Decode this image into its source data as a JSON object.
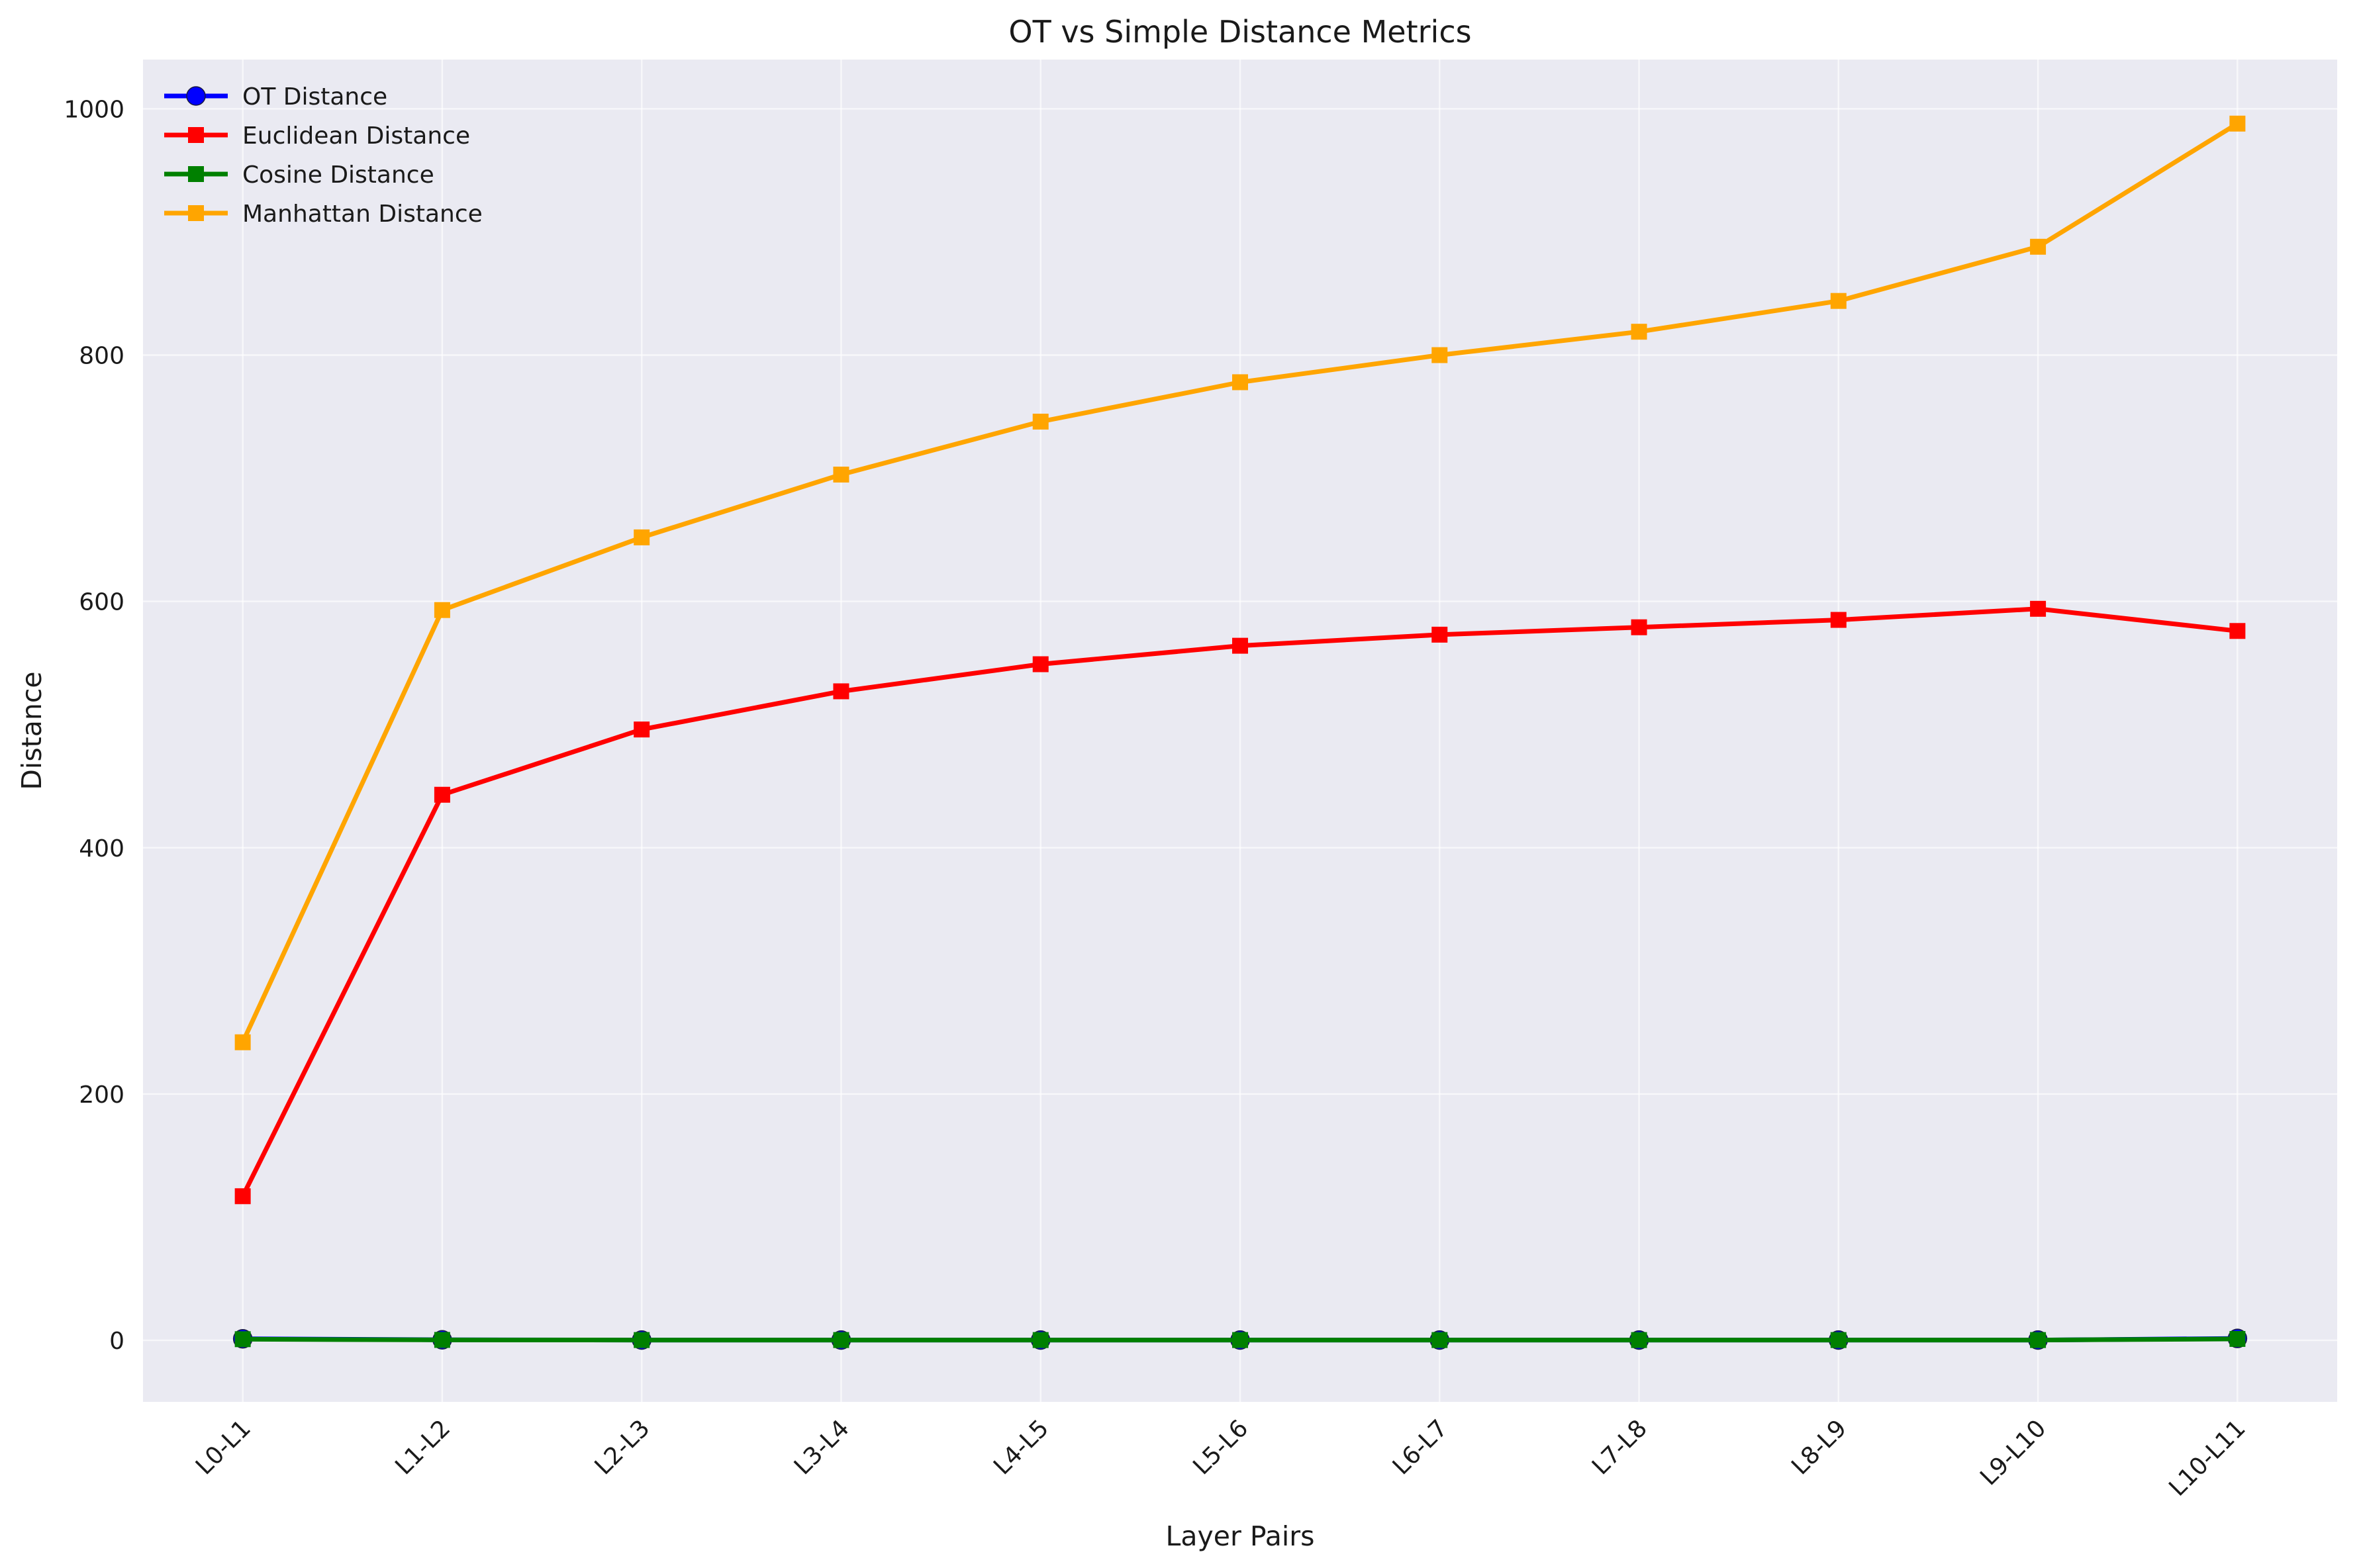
{
  "chart_data": {
    "type": "line",
    "title": "OT vs Simple Distance Metrics",
    "xlabel": "Layer Pairs",
    "ylabel": "Distance",
    "categories": [
      "L0-L1",
      "L1-L2",
      "L2-L3",
      "L3-L4",
      "L4-L5",
      "L5-L6",
      "L6-L7",
      "L7-L8",
      "L8-L9",
      "L9-L10",
      "L10-L11"
    ],
    "ylim": [
      -50,
      1040
    ],
    "yticks": [
      0,
      200,
      400,
      600,
      800,
      1000
    ],
    "grid": true,
    "legend_position": "top-left",
    "background_color": "#eaeaf2",
    "series": [
      {
        "name": "OT Distance",
        "color": "#0000ff",
        "marker": "circle",
        "values": [
          1.2,
          0.4,
          0.2,
          0.2,
          0.2,
          0.2,
          0.2,
          0.2,
          0.2,
          0.2,
          1.5
        ]
      },
      {
        "name": "Euclidean Distance",
        "color": "#ff0000",
        "marker": "square",
        "values": [
          117,
          443,
          496,
          527,
          549,
          564,
          573,
          579,
          585,
          594,
          576
        ]
      },
      {
        "name": "Cosine Distance",
        "color": "#008000",
        "marker": "square",
        "values": [
          0.9,
          0.3,
          0.2,
          0.2,
          0.2,
          0.2,
          0.2,
          0.2,
          0.2,
          0.2,
          1.1
        ]
      },
      {
        "name": "Manhattan Distance",
        "color": "#ffa500",
        "marker": "square",
        "values": [
          242,
          593,
          652,
          703,
          746,
          778,
          800,
          819,
          844,
          888,
          988
        ]
      }
    ]
  }
}
